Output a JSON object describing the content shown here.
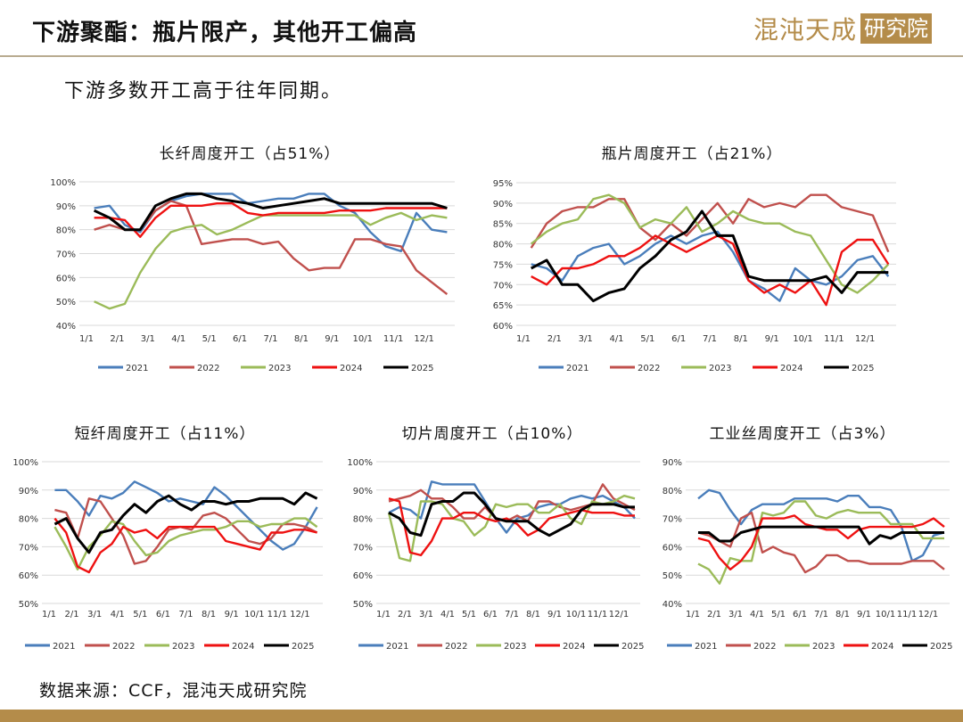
{
  "header": {
    "title": "下游聚酯：瓶片限产，其他开工偏高",
    "logo_text": "混沌天成",
    "logo_box_text": "研究院"
  },
  "subtitle": "下游多数开工高于往年同期。",
  "source": "数据来源：CCF，混沌天成研究院",
  "colors": {
    "2021": "#4a7ebb",
    "2022": "#c0504d",
    "2023": "#9bbb59",
    "2024": "#ee1111",
    "2025": "#000000",
    "brand": "#b48c4a"
  },
  "chart_data": [
    {
      "type": "line",
      "title": "长纤周度开工（占51%）",
      "ylim": [
        40,
        100
      ],
      "yticks": [
        "40%",
        "50%",
        "60%",
        "70%",
        "80%",
        "90%",
        "100%"
      ],
      "ystep": 10,
      "xticks": [
        "1/1",
        "2/1",
        "3/1",
        "4/1",
        "5/1",
        "6/1",
        "7/1",
        "8/1",
        "9/1",
        "10/1",
        "11/1",
        "12/1"
      ],
      "x_unit": "month",
      "x_step": 0.5,
      "legend": "bottom",
      "grid": true,
      "series": [
        {
          "name": "2021",
          "values": [
            89,
            90,
            82,
            79,
            88,
            92,
            94,
            95,
            95,
            95,
            91,
            92,
            93,
            93,
            95,
            95,
            90,
            87,
            79,
            73,
            71,
            87,
            80,
            79
          ]
        },
        {
          "name": "2022",
          "values": [
            80,
            82,
            80,
            80,
            88,
            92,
            90,
            74,
            75,
            76,
            76,
            74,
            75,
            68,
            63,
            64,
            64,
            76,
            76,
            74,
            73,
            63,
            58,
            53
          ]
        },
        {
          "name": "2023",
          "values": [
            50,
            47,
            49,
            62,
            72,
            79,
            81,
            82,
            78,
            80,
            83,
            86,
            86,
            86,
            86,
            86,
            86,
            86,
            82,
            85,
            87,
            84,
            86,
            85
          ]
        },
        {
          "name": "2024",
          "values": [
            85,
            85,
            84,
            77,
            85,
            90,
            90,
            90,
            91,
            91,
            87,
            86,
            87,
            87,
            87,
            87,
            88,
            88,
            88,
            89,
            89,
            89,
            89,
            89
          ]
        },
        {
          "name": "2025",
          "values": [
            88,
            85,
            80,
            80,
            90,
            93,
            95,
            95,
            93,
            92,
            91,
            89,
            90,
            91,
            92,
            93,
            91,
            91,
            91,
            91,
            91,
            91,
            91,
            89
          ]
        }
      ]
    },
    {
      "type": "line",
      "title": "瓶片周度开工（占21%）",
      "ylim": [
        60,
        95
      ],
      "yticks": [
        "60%",
        "65%",
        "70%",
        "75%",
        "80%",
        "85%",
        "90%",
        "95%"
      ],
      "ystep": 5,
      "xticks": [
        "1/1",
        "2/1",
        "3/1",
        "4/1",
        "5/1",
        "6/1",
        "7/1",
        "8/1",
        "9/1",
        "10/1",
        "11/1",
        "12/1"
      ],
      "x_unit": "month",
      "x_step": 0.5,
      "legend": "bottom",
      "grid": true,
      "series": [
        {
          "name": "2021",
          "values": [
            75,
            74,
            71,
            77,
            79,
            80,
            75,
            77,
            80,
            82,
            80,
            82,
            83,
            78,
            71,
            69,
            66,
            74,
            71,
            70,
            72,
            76,
            77,
            72
          ]
        },
        {
          "name": "2022",
          "values": [
            79,
            85,
            88,
            89,
            89,
            91,
            91,
            84,
            81,
            85,
            82,
            86,
            90,
            85,
            91,
            89,
            90,
            89,
            92,
            92,
            89,
            88,
            87,
            78
          ]
        },
        {
          "name": "2023",
          "values": [
            80,
            83,
            85,
            86,
            91,
            92,
            90,
            84,
            86,
            85,
            89,
            83,
            85,
            88,
            86,
            85,
            85,
            83,
            82,
            76,
            70,
            68,
            71,
            75
          ]
        },
        {
          "name": "2024",
          "values": [
            72,
            70,
            74,
            74,
            75,
            77,
            77,
            79,
            82,
            80,
            78,
            80,
            82,
            80,
            71,
            68,
            70,
            68,
            71,
            65,
            78,
            81,
            81,
            75
          ]
        },
        {
          "name": "2025",
          "values": [
            74,
            76,
            70,
            70,
            66,
            68,
            69,
            74,
            77,
            81,
            83,
            88,
            82,
            82,
            72,
            71,
            71,
            71,
            71,
            72,
            68,
            73,
            73,
            73
          ]
        }
      ]
    },
    {
      "type": "line",
      "title": "短纤周度开工（占11%）",
      "ylim": [
        50,
        100
      ],
      "yticks": [
        "50%",
        "60%",
        "70%",
        "80%",
        "90%",
        "100%"
      ],
      "ystep": 10,
      "xticks": [
        "1/1",
        "2/1",
        "3/1",
        "4/1",
        "5/1",
        "6/1",
        "7/1",
        "8/1",
        "9/1",
        "10/1",
        "11/1",
        "12/1"
      ],
      "x_unit": "month",
      "x_step": 0.5,
      "legend": "bottom",
      "grid": true,
      "series": [
        {
          "name": "2021",
          "values": [
            90,
            90,
            86,
            81,
            88,
            87,
            89,
            93,
            91,
            89,
            86,
            87,
            86,
            85,
            91,
            88,
            84,
            80,
            76,
            72,
            69,
            71,
            77,
            84
          ]
        },
        {
          "name": "2022",
          "values": [
            83,
            82,
            73,
            87,
            86,
            80,
            74,
            64,
            65,
            70,
            76,
            77,
            76,
            81,
            82,
            80,
            76,
            72,
            71,
            73,
            78,
            78,
            77,
            75
          ]
        },
        {
          "name": "2023",
          "values": [
            77,
            70,
            62,
            70,
            74,
            79,
            78,
            72,
            67,
            68,
            72,
            74,
            75,
            76,
            76,
            77,
            79,
            79,
            77,
            78,
            78,
            80,
            80,
            77
          ]
        },
        {
          "name": "2024",
          "values": [
            80,
            75,
            63,
            61,
            68,
            71,
            77,
            75,
            76,
            73,
            77,
            77,
            77,
            77,
            77,
            72,
            71,
            70,
            69,
            75,
            75,
            76,
            76,
            75
          ]
        },
        {
          "name": "2025",
          "values": [
            78,
            80,
            73,
            68,
            75,
            76,
            81,
            85,
            82,
            86,
            88,
            85,
            83,
            86,
            86,
            85,
            86,
            86,
            87,
            87,
            87,
            85,
            89,
            87
          ]
        }
      ]
    },
    {
      "type": "line",
      "title": "切片周度开工（占10%）",
      "ylim": [
        50,
        100
      ],
      "yticks": [
        "50%",
        "60%",
        "70%",
        "80%",
        "90%",
        "100%"
      ],
      "ystep": 10,
      "xticks": [
        "1/1",
        "2/1",
        "3/1",
        "4/1",
        "5/1",
        "6/1",
        "7/1",
        "8/1",
        "9/1",
        "10/1",
        "11/1",
        "12/1"
      ],
      "x_unit": "month",
      "x_step": 0.5,
      "legend": "bottom",
      "grid": true,
      "series": [
        {
          "name": "2021",
          "values": [
            82,
            84,
            83,
            80,
            93,
            92,
            92,
            92,
            92,
            86,
            80,
            75,
            80,
            81,
            84,
            85,
            85,
            87,
            88,
            87,
            88,
            86,
            84,
            80
          ]
        },
        {
          "name": "2022",
          "values": [
            86,
            87,
            88,
            90,
            87,
            87,
            84,
            80,
            80,
            84,
            80,
            79,
            81,
            79,
            86,
            86,
            84,
            83,
            84,
            85,
            92,
            87,
            85,
            83
          ]
        },
        {
          "name": "2023",
          "values": [
            82,
            66,
            65,
            86,
            86,
            85,
            80,
            79,
            74,
            77,
            85,
            84,
            85,
            85,
            82,
            82,
            85,
            80,
            78,
            86,
            85,
            86,
            88,
            87
          ]
        },
        {
          "name": "2024",
          "values": [
            87,
            86,
            68,
            67,
            72,
            80,
            80,
            82,
            82,
            80,
            79,
            80,
            78,
            74,
            76,
            80,
            81,
            82,
            83,
            82,
            82,
            82,
            81,
            81
          ]
        },
        {
          "name": "2025",
          "values": [
            82,
            80,
            75,
            74,
            85,
            86,
            86,
            89,
            89,
            85,
            80,
            79,
            79,
            79,
            76,
            74,
            76,
            78,
            83,
            85,
            85,
            85,
            84,
            84
          ]
        }
      ]
    },
    {
      "type": "line",
      "title": "工业丝周度开工（占3%）",
      "ylim": [
        40,
        90
      ],
      "yticks": [
        "40%",
        "50%",
        "60%",
        "70%",
        "80%",
        "90%"
      ],
      "ystep": 10,
      "xticks": [
        "1/1",
        "2/1",
        "3/1",
        "4/1",
        "5/1",
        "6/1",
        "7/1",
        "8/1",
        "9/1",
        "10/1",
        "11/1",
        "12/1"
      ],
      "x_unit": "month",
      "x_step": 0.5,
      "legend": "bottom",
      "grid": true,
      "series": [
        {
          "name": "2021",
          "values": [
            77,
            80,
            79,
            73,
            68,
            73,
            75,
            75,
            75,
            77,
            77,
            77,
            77,
            76,
            78,
            78,
            74,
            74,
            73,
            67,
            55,
            57,
            64,
            65
          ]
        },
        {
          "name": "2022",
          "values": [
            65,
            64,
            62,
            60,
            70,
            72,
            58,
            60,
            58,
            57,
            51,
            53,
            57,
            57,
            55,
            55,
            54,
            54,
            54,
            54,
            55,
            55,
            55,
            52
          ]
        },
        {
          "name": "2023",
          "values": [
            54,
            52,
            47,
            56,
            55,
            55,
            72,
            71,
            72,
            76,
            76,
            71,
            70,
            72,
            73,
            72,
            72,
            72,
            68,
            68,
            68,
            63,
            63,
            63
          ]
        },
        {
          "name": "2024",
          "values": [
            63,
            62,
            56,
            52,
            55,
            60,
            70,
            70,
            70,
            71,
            68,
            67,
            66,
            66,
            63,
            66,
            67,
            67,
            67,
            67,
            67,
            68,
            70,
            67
          ]
        },
        {
          "name": "2025",
          "values": [
            65,
            65,
            62,
            62,
            65,
            66,
            67,
            67,
            67,
            67,
            67,
            67,
            67,
            67,
            67,
            67,
            61,
            64,
            63,
            65,
            65,
            65,
            65,
            65
          ]
        }
      ]
    }
  ]
}
